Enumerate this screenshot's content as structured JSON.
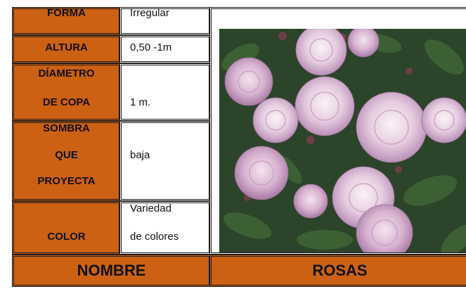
{
  "table": {
    "rows": [
      {
        "label": [
          "FORMA"
        ],
        "value": [
          "Irregular"
        ]
      },
      {
        "label": [
          "ALTURA"
        ],
        "value": [
          "0,50 -1m"
        ]
      },
      {
        "label": [
          "DÍAMETRO",
          "DE COPA"
        ],
        "value": [
          "1 m."
        ]
      },
      {
        "label": [
          "SOMBRA",
          "QUE",
          "PROYECTA"
        ],
        "value": [
          "baja"
        ]
      },
      {
        "label": [
          "COLOR"
        ],
        "value": [
          "Variedad",
          "de colores"
        ]
      }
    ],
    "footer": {
      "label": "NOMBRE",
      "name": "ROSAS"
    }
  }
}
